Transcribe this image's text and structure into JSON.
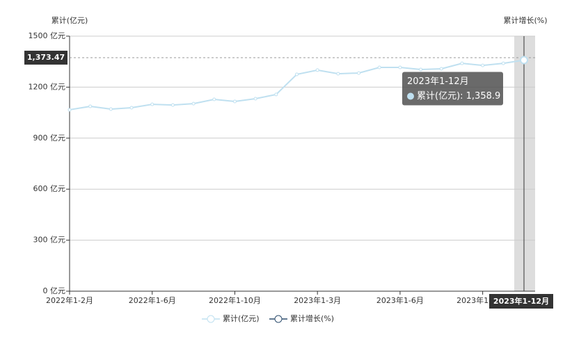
{
  "chart_data": {
    "type": "line",
    "y_axis_label": "累计(亿元)",
    "y2_axis_label": "累计增长(%)",
    "categories": [
      "2022年1-2月",
      null,
      null,
      null,
      "2022年1-6月",
      null,
      null,
      null,
      "2022年1-10月",
      null,
      null,
      null,
      "2023年1-3月",
      null,
      null,
      null,
      "2023年1-6月",
      null,
      null,
      null,
      "2023年1-10月",
      null,
      "2023年1-12月"
    ],
    "series": [
      {
        "name": "累计(亿元)",
        "color": "#bfe0f0",
        "values": [
          1067,
          1087,
          1071,
          1079,
          1099,
          1095,
          1103,
          1128,
          1116,
          1132,
          1157,
          1275,
          1300,
          1279,
          1283,
          1316,
          1316,
          1304,
          1308,
          1340,
          1328,
          1340,
          1358.9
        ]
      },
      {
        "name": "累计增长(%)",
        "color": "#2f4f6f",
        "axis": "y2",
        "values": [
          null,
          null,
          null,
          null,
          null,
          null,
          null,
          null,
          null,
          null,
          null,
          null,
          null,
          null,
          null,
          null,
          null,
          null,
          null,
          null,
          null,
          null,
          null
        ]
      }
    ],
    "ylim": [
      0,
      1500
    ],
    "yticks": [
      {
        "value": 0,
        "label": "0 亿元"
      },
      {
        "value": 300,
        "label": "300 亿元"
      },
      {
        "value": 600,
        "label": "600 亿元"
      },
      {
        "value": 900,
        "label": "900 亿元"
      },
      {
        "value": 1200,
        "label": "1200 亿元"
      },
      {
        "value": 1500,
        "label": "1500 亿元"
      }
    ],
    "grid": true,
    "legend": "bottom",
    "axis_pointer": {
      "value": 1373.47,
      "label": "1,373.47"
    },
    "tooltip": {
      "index": 22,
      "title": "2023年1-12月",
      "label": "累计(亿元): 1,358.9"
    }
  }
}
